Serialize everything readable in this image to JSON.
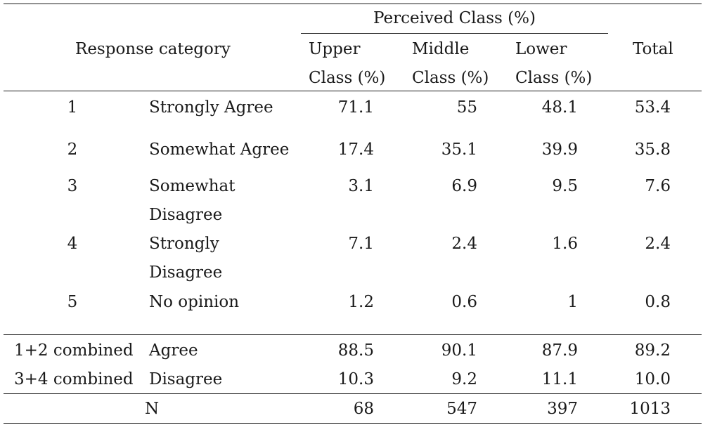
{
  "header": {
    "response_category": "Response category",
    "perceived_class": "Perceived Class (%)",
    "total": "Total",
    "columns": [
      {
        "line1": "Upper",
        "line2": "Class (%)"
      },
      {
        "line1": "Middle",
        "line2": "Class (%)"
      },
      {
        "line1": "Lower",
        "line2": "Class (%)"
      }
    ]
  },
  "rows": [
    {
      "code": "1",
      "label_line1": "Strongly Agree",
      "label_line2": "",
      "upper": "71.1",
      "middle": "55",
      "lower": "48.1",
      "total": "53.4"
    },
    {
      "code": "2",
      "label_line1": "Somewhat Agree",
      "label_line2": "",
      "upper": "17.4",
      "middle": "35.1",
      "lower": "39.9",
      "total": "35.8"
    },
    {
      "code": "3",
      "label_line1": "Somewhat",
      "label_line2": "Disagree",
      "upper": "3.1",
      "middle": "6.9",
      "lower": "9.5",
      "total": "7.6"
    },
    {
      "code": "4",
      "label_line1": "Strongly",
      "label_line2": "Disagree",
      "upper": "7.1",
      "middle": "2.4",
      "lower": "1.6",
      "total": "2.4"
    },
    {
      "code": "5",
      "label_line1": "No opinion",
      "label_line2": "",
      "upper": "1.2",
      "middle": "0.6",
      "lower": "1",
      "total": "0.8"
    }
  ],
  "combined": [
    {
      "code": "1+2 combined",
      "label": "Agree",
      "upper": "88.5",
      "middle": "90.1",
      "lower": "87.9",
      "total": "89.2"
    },
    {
      "code": "3+4 combined",
      "label": "Disagree",
      "upper": "10.3",
      "middle": "9.2",
      "lower": "11.1",
      "total": "10.0"
    }
  ],
  "n_row": {
    "label": "N",
    "upper": "68",
    "middle": "547",
    "lower": "397",
    "total": "1013"
  }
}
